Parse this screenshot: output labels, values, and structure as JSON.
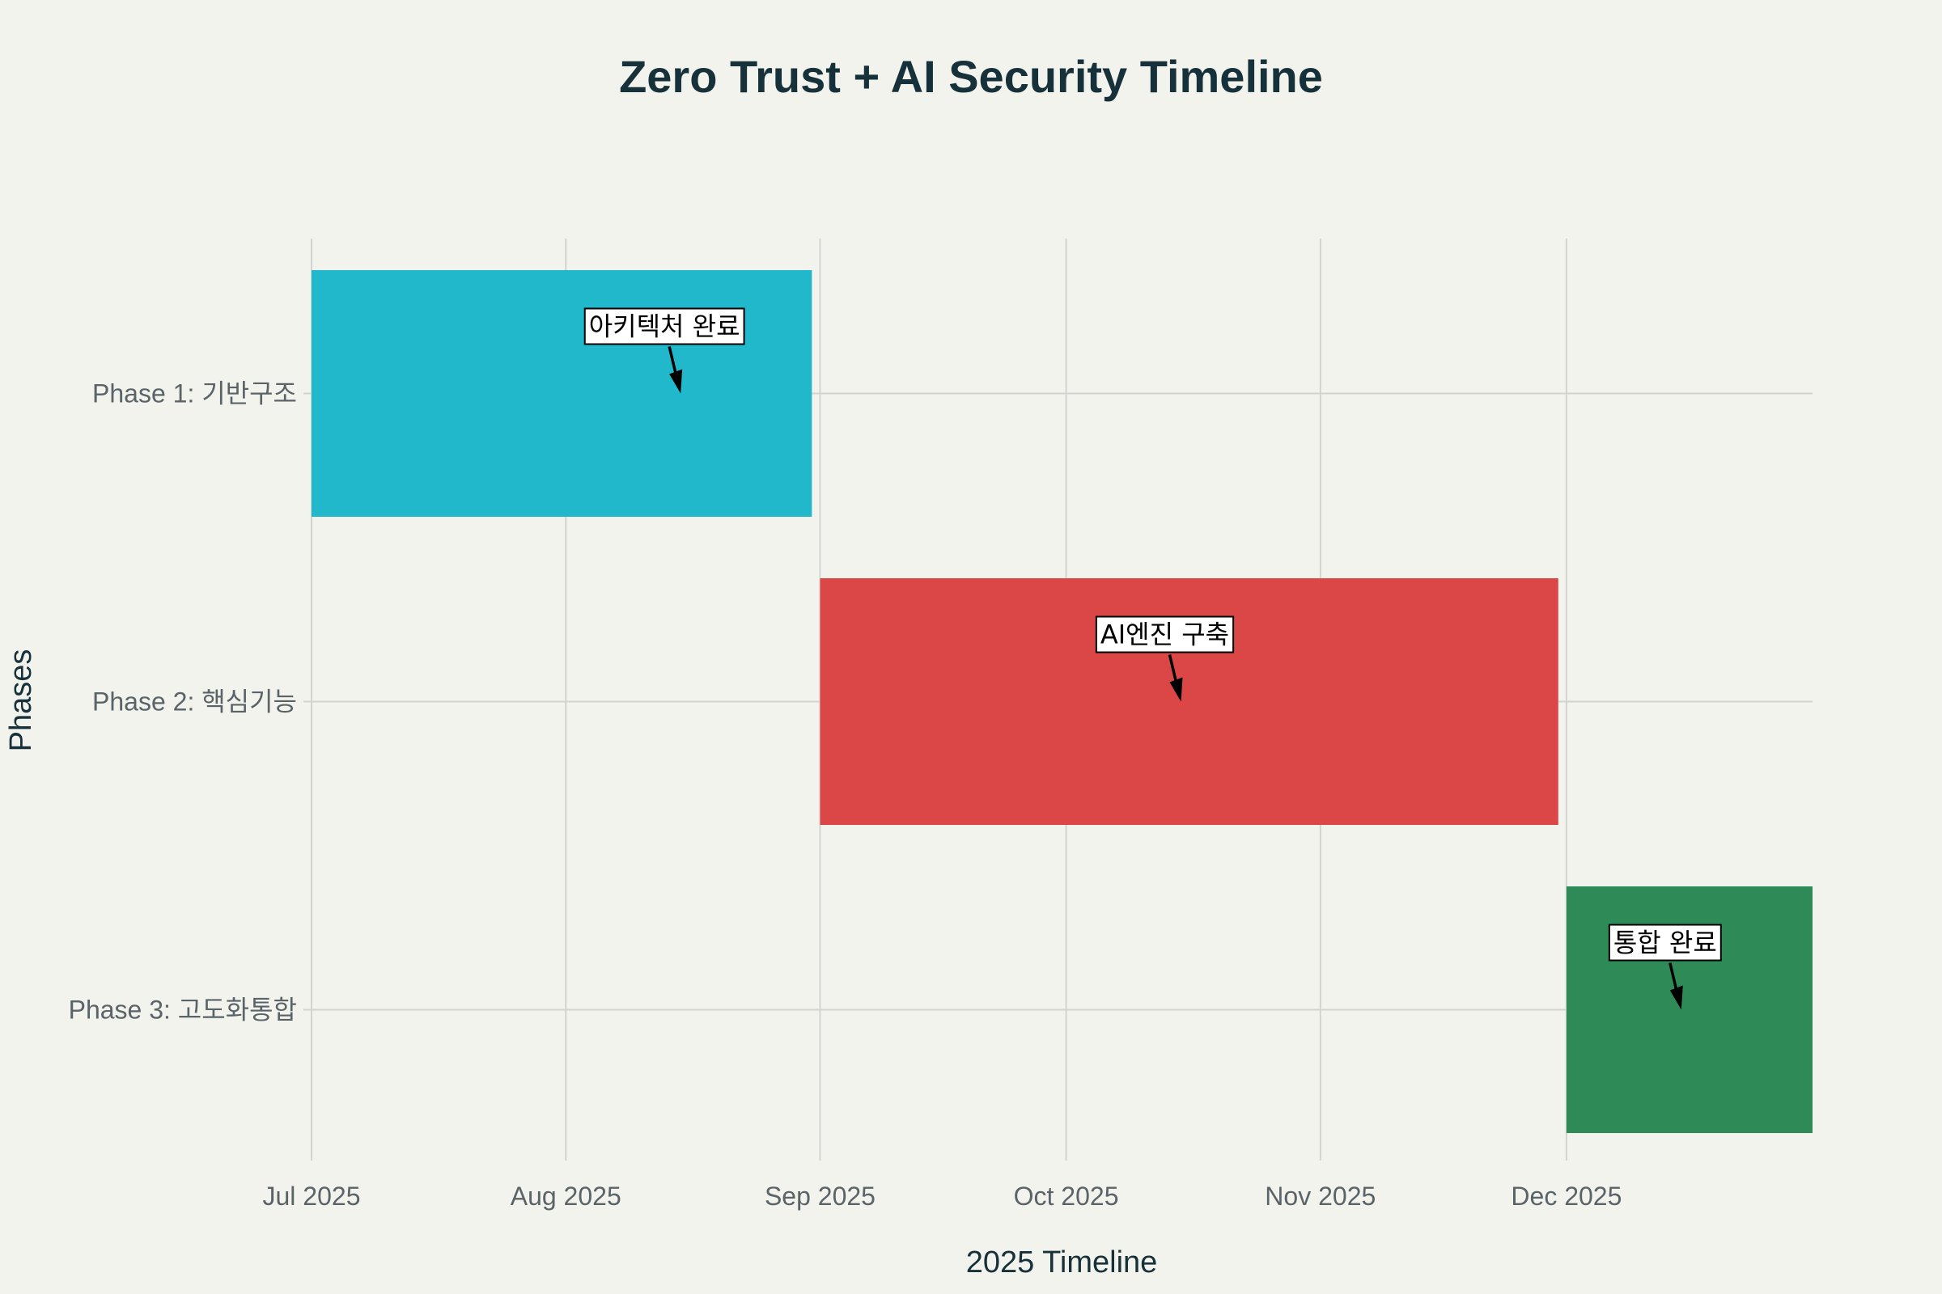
{
  "chart_data": {
    "type": "gantt",
    "title": "Zero Trust + AI Security Timeline",
    "xlabel": "2025 Timeline",
    "ylabel": "Phases",
    "x_range": [
      "2025-07-01",
      "2025-12-31"
    ],
    "x_ticks": [
      {
        "date": "2025-07-01",
        "label": "Jul 2025"
      },
      {
        "date": "2025-08-01",
        "label": "Aug 2025"
      },
      {
        "date": "2025-09-01",
        "label": "Sep 2025"
      },
      {
        "date": "2025-10-01",
        "label": "Oct 2025"
      },
      {
        "date": "2025-11-01",
        "label": "Nov 2025"
      },
      {
        "date": "2025-12-01",
        "label": "Dec 2025"
      }
    ],
    "grid": true,
    "tasks": [
      {
        "name": "Phase 1: 기반구조",
        "start": "2025-07-01",
        "end": "2025-08-31",
        "color": "#21b8cc",
        "annotation": {
          "text": "아키텍처 완료",
          "date": "2025-08-15"
        }
      },
      {
        "name": "Phase 2: 핵심기능",
        "start": "2025-09-01",
        "end": "2025-11-30",
        "color": "#db4646",
        "annotation": {
          "text": "AI엔진 구축",
          "date": "2025-10-15"
        }
      },
      {
        "name": "Phase 3: 고도화통합",
        "start": "2025-12-01",
        "end": "2025-12-31",
        "color": "#2e8b57",
        "annotation": {
          "text": "통합 완료",
          "date": "2025-12-15"
        }
      }
    ]
  }
}
